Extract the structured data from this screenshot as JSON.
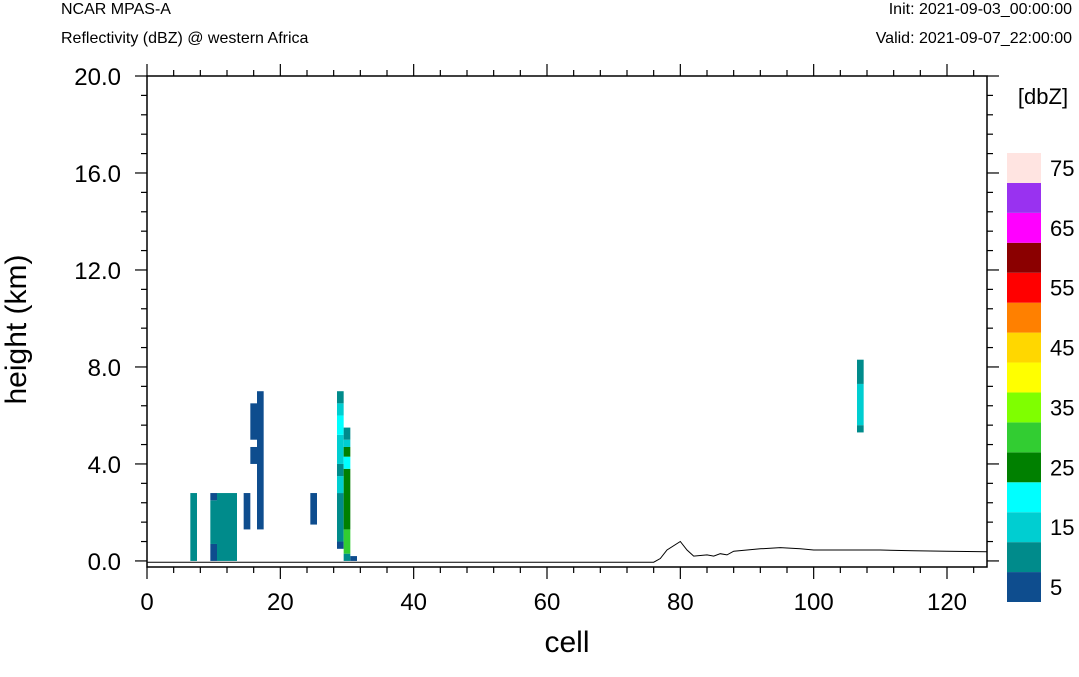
{
  "header": {
    "model": "NCAR MPAS-A",
    "field": "Reflectivity (dBZ) @ western Africa",
    "init": "Init: 2021-09-03_00:00:00",
    "valid": "Valid: 2021-09-07_22:00:00"
  },
  "chart_data": {
    "type": "heatmap",
    "title": "Reflectivity (dBZ) @ western Africa",
    "xlabel": "cell",
    "ylabel": "height (km)",
    "xlim": [
      0,
      126
    ],
    "ylim": [
      -0.25,
      20.0
    ],
    "xticks": [
      0,
      20,
      40,
      60,
      80,
      100,
      120
    ],
    "xtick_labels": [
      "0",
      "20",
      "40",
      "60",
      "80",
      "100",
      "120"
    ],
    "yticks": [
      0,
      4,
      8,
      12,
      16,
      20
    ],
    "ytick_labels": [
      "0.0",
      "4.0",
      "8.0",
      "12.0",
      "16.0",
      "20.0"
    ],
    "grid": false,
    "colorbar": {
      "unit_label": "[dbZ]",
      "levels": [
        5,
        10,
        15,
        20,
        25,
        30,
        35,
        40,
        45,
        50,
        55,
        60,
        65,
        70,
        75
      ],
      "colors": [
        "#0e4d8e",
        "#008b8b",
        "#00ced1",
        "#00ffff",
        "#008000",
        "#32cd32",
        "#7fff00",
        "#ffff00",
        "#ffd700",
        "#ff8000",
        "#ff0000",
        "#8b0000",
        "#ff00ff",
        "#9932f0",
        "#ffe4e1"
      ],
      "tick_labels": [
        "5",
        "15",
        "25",
        "35",
        "45",
        "55",
        "65",
        "75"
      ]
    },
    "cells": [
      {
        "x0": 6.5,
        "x1": 7.5,
        "y0": 0,
        "y1": 2.8,
        "dbz": 10
      },
      {
        "x0": 9.5,
        "x1": 10.5,
        "y0": 0,
        "y1": 0.7,
        "dbz": 5
      },
      {
        "x0": 9.5,
        "x1": 10.5,
        "y0": 0.7,
        "y1": 2.5,
        "dbz": 10
      },
      {
        "x0": 9.5,
        "x1": 10.5,
        "y0": 2.5,
        "y1": 2.8,
        "dbz": 5
      },
      {
        "x0": 10.5,
        "x1": 13.5,
        "y0": 0,
        "y1": 2.8,
        "dbz": 10
      },
      {
        "x0": 14.5,
        "x1": 15.5,
        "y0": 1.3,
        "y1": 2.8,
        "dbz": 5
      },
      {
        "x0": 15.5,
        "x1": 16.5,
        "y0": 4.0,
        "y1": 4.7,
        "dbz": 5
      },
      {
        "x0": 15.5,
        "x1": 16.5,
        "y0": 5.0,
        "y1": 6.5,
        "dbz": 5
      },
      {
        "x0": 16.5,
        "x1": 17.5,
        "y0": 1.3,
        "y1": 7.0,
        "dbz": 5
      },
      {
        "x0": 24.5,
        "x1": 25.5,
        "y0": 1.5,
        "y1": 2.8,
        "dbz": 5
      },
      {
        "x0": 28.5,
        "x1": 29.5,
        "y0": 0.5,
        "y1": 0.8,
        "dbz": 5
      },
      {
        "x0": 28.5,
        "x1": 29.5,
        "y0": 0.8,
        "y1": 2.8,
        "dbz": 10
      },
      {
        "x0": 28.5,
        "x1": 29.5,
        "y0": 2.8,
        "y1": 3.5,
        "dbz": 15
      },
      {
        "x0": 28.5,
        "x1": 29.5,
        "y0": 3.5,
        "y1": 4.0,
        "dbz": 10
      },
      {
        "x0": 28.5,
        "x1": 29.5,
        "y0": 4.0,
        "y1": 5.2,
        "dbz": 15
      },
      {
        "x0": 28.5,
        "x1": 29.5,
        "y0": 5.2,
        "y1": 6.0,
        "dbz": 20
      },
      {
        "x0": 28.5,
        "x1": 29.5,
        "y0": 6.0,
        "y1": 6.5,
        "dbz": 15
      },
      {
        "x0": 28.5,
        "x1": 29.5,
        "y0": 6.5,
        "y1": 7.0,
        "dbz": 10
      },
      {
        "x0": 29.5,
        "x1": 30.5,
        "y0": 0,
        "y1": 0.3,
        "dbz": 10
      },
      {
        "x0": 29.5,
        "x1": 30.5,
        "y0": 0.3,
        "y1": 1.3,
        "dbz": 30
      },
      {
        "x0": 29.5,
        "x1": 30.5,
        "y0": 1.3,
        "y1": 3.8,
        "dbz": 25
      },
      {
        "x0": 29.5,
        "x1": 30.5,
        "y0": 3.8,
        "y1": 4.3,
        "dbz": 20
      },
      {
        "x0": 29.5,
        "x1": 30.5,
        "y0": 4.3,
        "y1": 4.7,
        "dbz": 25
      },
      {
        "x0": 29.5,
        "x1": 30.5,
        "y0": 4.7,
        "y1": 5.0,
        "dbz": 15
      },
      {
        "x0": 29.5,
        "x1": 30.5,
        "y0": 5.0,
        "y1": 5.5,
        "dbz": 10
      },
      {
        "x0": 30.5,
        "x1": 31.5,
        "y0": 0,
        "y1": 0.2,
        "dbz": 5
      },
      {
        "x0": 106.5,
        "x1": 107.5,
        "y0": 5.3,
        "y1": 5.6,
        "dbz": 10
      },
      {
        "x0": 106.5,
        "x1": 107.5,
        "y0": 5.6,
        "y1": 7.3,
        "dbz": 15
      },
      {
        "x0": 106.5,
        "x1": 107.5,
        "y0": 7.3,
        "y1": 8.3,
        "dbz": 10
      }
    ],
    "terrain": [
      [
        0,
        -0.05
      ],
      [
        76,
        -0.05
      ],
      [
        77,
        0.1
      ],
      [
        78,
        0.45
      ],
      [
        80,
        0.8
      ],
      [
        81,
        0.45
      ],
      [
        82,
        0.2
      ],
      [
        84,
        0.25
      ],
      [
        85,
        0.2
      ],
      [
        86,
        0.3
      ],
      [
        87,
        0.25
      ],
      [
        88,
        0.4
      ],
      [
        90,
        0.45
      ],
      [
        92,
        0.5
      ],
      [
        95,
        0.55
      ],
      [
        98,
        0.5
      ],
      [
        100,
        0.45
      ],
      [
        105,
        0.45
      ],
      [
        110,
        0.45
      ],
      [
        115,
        0.42
      ],
      [
        120,
        0.4
      ],
      [
        126,
        0.38
      ]
    ]
  }
}
